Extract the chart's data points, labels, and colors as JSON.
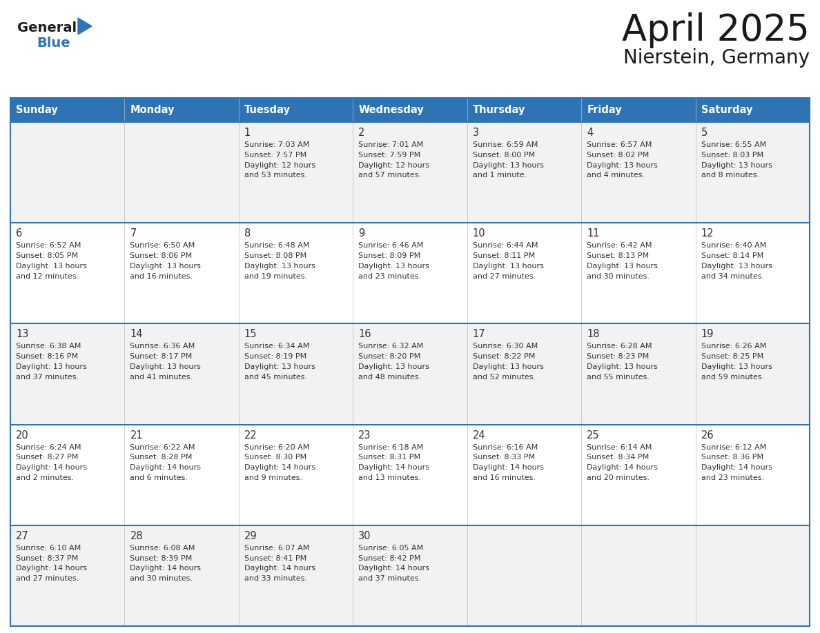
{
  "title": "April 2025",
  "subtitle": "Nierstein, Germany",
  "header_bg": "#2E74B5",
  "header_text_color": "#FFFFFF",
  "days_of_week": [
    "Sunday",
    "Monday",
    "Tuesday",
    "Wednesday",
    "Thursday",
    "Friday",
    "Saturday"
  ],
  "cell_bg_even": "#F2F2F2",
  "cell_bg_odd": "#FFFFFF",
  "row_line_color": "#2E74B5",
  "title_color": "#1a1a1a",
  "subtitle_color": "#1a1a1a",
  "day_number_color": "#333333",
  "cell_text_color": "#333333",
  "weeks": [
    [
      {
        "day": null,
        "text": ""
      },
      {
        "day": null,
        "text": ""
      },
      {
        "day": 1,
        "text": "Sunrise: 7:03 AM\nSunset: 7:57 PM\nDaylight: 12 hours\nand 53 minutes."
      },
      {
        "day": 2,
        "text": "Sunrise: 7:01 AM\nSunset: 7:59 PM\nDaylight: 12 hours\nand 57 minutes."
      },
      {
        "day": 3,
        "text": "Sunrise: 6:59 AM\nSunset: 8:00 PM\nDaylight: 13 hours\nand 1 minute."
      },
      {
        "day": 4,
        "text": "Sunrise: 6:57 AM\nSunset: 8:02 PM\nDaylight: 13 hours\nand 4 minutes."
      },
      {
        "day": 5,
        "text": "Sunrise: 6:55 AM\nSunset: 8:03 PM\nDaylight: 13 hours\nand 8 minutes."
      }
    ],
    [
      {
        "day": 6,
        "text": "Sunrise: 6:52 AM\nSunset: 8:05 PM\nDaylight: 13 hours\nand 12 minutes."
      },
      {
        "day": 7,
        "text": "Sunrise: 6:50 AM\nSunset: 8:06 PM\nDaylight: 13 hours\nand 16 minutes."
      },
      {
        "day": 8,
        "text": "Sunrise: 6:48 AM\nSunset: 8:08 PM\nDaylight: 13 hours\nand 19 minutes."
      },
      {
        "day": 9,
        "text": "Sunrise: 6:46 AM\nSunset: 8:09 PM\nDaylight: 13 hours\nand 23 minutes."
      },
      {
        "day": 10,
        "text": "Sunrise: 6:44 AM\nSunset: 8:11 PM\nDaylight: 13 hours\nand 27 minutes."
      },
      {
        "day": 11,
        "text": "Sunrise: 6:42 AM\nSunset: 8:13 PM\nDaylight: 13 hours\nand 30 minutes."
      },
      {
        "day": 12,
        "text": "Sunrise: 6:40 AM\nSunset: 8:14 PM\nDaylight: 13 hours\nand 34 minutes."
      }
    ],
    [
      {
        "day": 13,
        "text": "Sunrise: 6:38 AM\nSunset: 8:16 PM\nDaylight: 13 hours\nand 37 minutes."
      },
      {
        "day": 14,
        "text": "Sunrise: 6:36 AM\nSunset: 8:17 PM\nDaylight: 13 hours\nand 41 minutes."
      },
      {
        "day": 15,
        "text": "Sunrise: 6:34 AM\nSunset: 8:19 PM\nDaylight: 13 hours\nand 45 minutes."
      },
      {
        "day": 16,
        "text": "Sunrise: 6:32 AM\nSunset: 8:20 PM\nDaylight: 13 hours\nand 48 minutes."
      },
      {
        "day": 17,
        "text": "Sunrise: 6:30 AM\nSunset: 8:22 PM\nDaylight: 13 hours\nand 52 minutes."
      },
      {
        "day": 18,
        "text": "Sunrise: 6:28 AM\nSunset: 8:23 PM\nDaylight: 13 hours\nand 55 minutes."
      },
      {
        "day": 19,
        "text": "Sunrise: 6:26 AM\nSunset: 8:25 PM\nDaylight: 13 hours\nand 59 minutes."
      }
    ],
    [
      {
        "day": 20,
        "text": "Sunrise: 6:24 AM\nSunset: 8:27 PM\nDaylight: 14 hours\nand 2 minutes."
      },
      {
        "day": 21,
        "text": "Sunrise: 6:22 AM\nSunset: 8:28 PM\nDaylight: 14 hours\nand 6 minutes."
      },
      {
        "day": 22,
        "text": "Sunrise: 6:20 AM\nSunset: 8:30 PM\nDaylight: 14 hours\nand 9 minutes."
      },
      {
        "day": 23,
        "text": "Sunrise: 6:18 AM\nSunset: 8:31 PM\nDaylight: 14 hours\nand 13 minutes."
      },
      {
        "day": 24,
        "text": "Sunrise: 6:16 AM\nSunset: 8:33 PM\nDaylight: 14 hours\nand 16 minutes."
      },
      {
        "day": 25,
        "text": "Sunrise: 6:14 AM\nSunset: 8:34 PM\nDaylight: 14 hours\nand 20 minutes."
      },
      {
        "day": 26,
        "text": "Sunrise: 6:12 AM\nSunset: 8:36 PM\nDaylight: 14 hours\nand 23 minutes."
      }
    ],
    [
      {
        "day": 27,
        "text": "Sunrise: 6:10 AM\nSunset: 8:37 PM\nDaylight: 14 hours\nand 27 minutes."
      },
      {
        "day": 28,
        "text": "Sunrise: 6:08 AM\nSunset: 8:39 PM\nDaylight: 14 hours\nand 30 minutes."
      },
      {
        "day": 29,
        "text": "Sunrise: 6:07 AM\nSunset: 8:41 PM\nDaylight: 14 hours\nand 33 minutes."
      },
      {
        "day": 30,
        "text": "Sunrise: 6:05 AM\nSunset: 8:42 PM\nDaylight: 14 hours\nand 37 minutes."
      },
      {
        "day": null,
        "text": ""
      },
      {
        "day": null,
        "text": ""
      },
      {
        "day": null,
        "text": ""
      }
    ]
  ]
}
